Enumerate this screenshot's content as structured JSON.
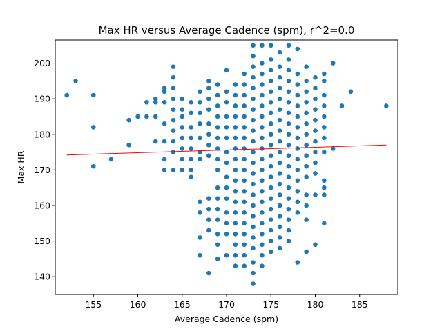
{
  "chart_data": {
    "type": "scatter",
    "title": "Max HR versus Average Cadence (spm), r^2=0.0",
    "xlabel": "Average Cadence (spm)",
    "ylabel": "Max HR",
    "xlim": [
      150.7,
      189.3
    ],
    "ylim": [
      135,
      206.5
    ],
    "xticks": [
      155,
      160,
      165,
      170,
      175,
      180,
      185
    ],
    "yticks": [
      140,
      150,
      160,
      170,
      180,
      190,
      200
    ],
    "grid": false,
    "marker_color": "#1f77b4",
    "fit_color": "#ff0000",
    "fit_line": {
      "x": [
        152,
        188
      ],
      "y": [
        174.2,
        177.0
      ]
    },
    "points": [
      [
        152,
        191
      ],
      [
        153,
        195
      ],
      [
        155,
        191
      ],
      [
        155,
        182
      ],
      [
        155,
        171
      ],
      [
        157,
        173
      ],
      [
        159,
        184
      ],
      [
        159,
        177
      ],
      [
        160,
        185
      ],
      [
        161,
        189
      ],
      [
        161,
        185
      ],
      [
        162,
        190
      ],
      [
        162,
        189
      ],
      [
        162,
        185
      ],
      [
        162,
        178
      ],
      [
        163,
        193
      ],
      [
        163,
        192
      ],
      [
        163,
        189
      ],
      [
        163,
        183
      ],
      [
        163,
        178
      ],
      [
        163,
        173
      ],
      [
        163,
        170
      ],
      [
        164,
        199
      ],
      [
        164,
        196
      ],
      [
        164,
        193
      ],
      [
        164,
        190
      ],
      [
        164,
        187
      ],
      [
        164,
        184
      ],
      [
        164,
        181
      ],
      [
        164,
        178
      ],
      [
        164,
        175
      ],
      [
        164,
        170
      ],
      [
        165,
        190
      ],
      [
        165,
        187
      ],
      [
        165,
        185
      ],
      [
        165,
        182
      ],
      [
        165,
        179
      ],
      [
        165,
        176
      ],
      [
        165,
        173
      ],
      [
        165,
        170
      ],
      [
        166,
        189
      ],
      [
        166,
        186
      ],
      [
        166,
        182
      ],
      [
        166,
        179
      ],
      [
        166,
        176
      ],
      [
        166,
        173
      ],
      [
        166,
        170
      ],
      [
        166,
        168
      ],
      [
        167,
        192
      ],
      [
        167,
        189
      ],
      [
        167,
        186
      ],
      [
        167,
        183
      ],
      [
        167,
        179
      ],
      [
        167,
        175
      ],
      [
        167,
        173
      ],
      [
        167,
        161
      ],
      [
        167,
        158
      ],
      [
        167,
        151
      ],
      [
        167,
        146
      ],
      [
        168,
        195
      ],
      [
        168,
        193
      ],
      [
        168,
        190
      ],
      [
        168,
        187
      ],
      [
        168,
        183
      ],
      [
        168,
        180
      ],
      [
        168,
        177
      ],
      [
        168,
        174
      ],
      [
        168,
        162
      ],
      [
        168,
        159
      ],
      [
        168,
        156
      ],
      [
        168,
        153
      ],
      [
        168,
        141
      ],
      [
        169,
        194
      ],
      [
        169,
        191
      ],
      [
        169,
        188
      ],
      [
        169,
        185
      ],
      [
        169,
        182
      ],
      [
        169,
        179
      ],
      [
        169,
        176
      ],
      [
        169,
        173
      ],
      [
        169,
        170
      ],
      [
        169,
        165
      ],
      [
        169,
        162
      ],
      [
        169,
        159
      ],
      [
        169,
        156
      ],
      [
        169,
        152
      ],
      [
        169,
        149
      ],
      [
        169,
        145
      ],
      [
        170,
        198
      ],
      [
        170,
        192
      ],
      [
        170,
        189
      ],
      [
        170,
        185
      ],
      [
        170,
        182
      ],
      [
        170,
        179
      ],
      [
        170,
        175
      ],
      [
        170,
        172
      ],
      [
        170,
        168
      ],
      [
        170,
        165
      ],
      [
        170,
        162
      ],
      [
        170,
        158
      ],
      [
        170,
        155
      ],
      [
        170,
        152
      ],
      [
        170,
        146
      ],
      [
        171,
        194
      ],
      [
        171,
        191
      ],
      [
        171,
        188
      ],
      [
        171,
        185
      ],
      [
        171,
        182
      ],
      [
        171,
        179
      ],
      [
        171,
        176
      ],
      [
        171,
        173
      ],
      [
        171,
        170
      ],
      [
        171,
        167
      ],
      [
        171,
        164
      ],
      [
        171,
        161
      ],
      [
        171,
        158
      ],
      [
        171,
        155
      ],
      [
        171,
        152
      ],
      [
        171,
        149
      ],
      [
        171,
        146
      ],
      [
        171,
        143
      ],
      [
        172,
        197
      ],
      [
        172,
        194
      ],
      [
        172,
        191
      ],
      [
        172,
        188
      ],
      [
        172,
        185
      ],
      [
        172,
        182
      ],
      [
        172,
        179
      ],
      [
        172,
        176
      ],
      [
        172,
        173
      ],
      [
        172,
        170
      ],
      [
        172,
        167
      ],
      [
        172,
        164
      ],
      [
        172,
        161
      ],
      [
        172,
        158
      ],
      [
        172,
        155
      ],
      [
        172,
        152
      ],
      [
        172,
        149
      ],
      [
        172,
        146
      ],
      [
        172,
        143
      ],
      [
        173,
        205
      ],
      [
        173,
        202
      ],
      [
        173,
        199
      ],
      [
        173,
        196
      ],
      [
        173,
        193
      ],
      [
        173,
        190
      ],
      [
        173,
        187
      ],
      [
        173,
        184
      ],
      [
        173,
        181
      ],
      [
        173,
        178
      ],
      [
        173,
        175
      ],
      [
        173,
        172
      ],
      [
        173,
        169
      ],
      [
        173,
        166
      ],
      [
        173,
        163
      ],
      [
        173,
        160
      ],
      [
        173,
        157
      ],
      [
        173,
        154
      ],
      [
        173,
        151
      ],
      [
        173,
        148
      ],
      [
        173,
        144
      ],
      [
        173,
        141
      ],
      [
        173,
        138
      ],
      [
        174,
        205
      ],
      [
        174,
        200
      ],
      [
        174,
        197
      ],
      [
        174,
        194
      ],
      [
        174,
        191
      ],
      [
        174,
        188
      ],
      [
        174,
        185
      ],
      [
        174,
        182
      ],
      [
        174,
        179
      ],
      [
        174,
        176
      ],
      [
        174,
        173
      ],
      [
        174,
        170
      ],
      [
        174,
        167
      ],
      [
        174,
        164
      ],
      [
        174,
        161
      ],
      [
        174,
        158
      ],
      [
        174,
        155
      ],
      [
        174,
        152
      ],
      [
        174,
        149
      ],
      [
        174,
        146
      ],
      [
        174,
        143
      ],
      [
        175,
        205
      ],
      [
        175,
        201
      ],
      [
        175,
        198
      ],
      [
        175,
        195
      ],
      [
        175,
        192
      ],
      [
        175,
        189
      ],
      [
        175,
        186
      ],
      [
        175,
        183
      ],
      [
        175,
        180
      ],
      [
        175,
        177
      ],
      [
        175,
        174
      ],
      [
        175,
        171
      ],
      [
        175,
        168
      ],
      [
        175,
        165
      ],
      [
        175,
        162
      ],
      [
        175,
        159
      ],
      [
        175,
        156
      ],
      [
        175,
        153
      ],
      [
        175,
        150
      ],
      [
        175,
        147
      ],
      [
        176,
        203
      ],
      [
        176,
        199
      ],
      [
        176,
        196
      ],
      [
        176,
        193
      ],
      [
        176,
        190
      ],
      [
        176,
        187
      ],
      [
        176,
        184
      ],
      [
        176,
        181
      ],
      [
        176,
        178
      ],
      [
        176,
        175
      ],
      [
        176,
        172
      ],
      [
        176,
        169
      ],
      [
        176,
        166
      ],
      [
        176,
        163
      ],
      [
        176,
        160
      ],
      [
        176,
        157
      ],
      [
        176,
        154
      ],
      [
        176,
        151
      ],
      [
        176,
        148
      ],
      [
        177,
        205
      ],
      [
        177,
        201
      ],
      [
        177,
        198
      ],
      [
        177,
        195
      ],
      [
        177,
        192
      ],
      [
        177,
        189
      ],
      [
        177,
        186
      ],
      [
        177,
        183
      ],
      [
        177,
        180
      ],
      [
        177,
        177
      ],
      [
        177,
        174
      ],
      [
        177,
        171
      ],
      [
        177,
        168
      ],
      [
        177,
        165
      ],
      [
        177,
        162
      ],
      [
        177,
        159
      ],
      [
        177,
        156
      ],
      [
        177,
        153
      ],
      [
        177,
        150
      ],
      [
        178,
        204
      ],
      [
        178,
        197
      ],
      [
        178,
        194
      ],
      [
        178,
        191
      ],
      [
        178,
        188
      ],
      [
        178,
        185
      ],
      [
        178,
        182
      ],
      [
        178,
        179
      ],
      [
        178,
        176
      ],
      [
        178,
        173
      ],
      [
        178,
        170
      ],
      [
        178,
        167
      ],
      [
        178,
        164
      ],
      [
        178,
        161
      ],
      [
        178,
        158
      ],
      [
        178,
        144
      ],
      [
        179,
        199
      ],
      [
        179,
        195
      ],
      [
        179,
        192
      ],
      [
        179,
        189
      ],
      [
        179,
        186
      ],
      [
        179,
        183
      ],
      [
        179,
        180
      ],
      [
        179,
        177
      ],
      [
        179,
        174
      ],
      [
        179,
        171
      ],
      [
        179,
        168
      ],
      [
        179,
        163
      ],
      [
        179,
        160
      ],
      [
        179,
        156
      ],
      [
        179,
        147
      ],
      [
        180,
        196
      ],
      [
        180,
        193
      ],
      [
        180,
        190
      ],
      [
        180,
        187
      ],
      [
        180,
        184
      ],
      [
        180,
        181
      ],
      [
        180,
        178
      ],
      [
        180,
        175
      ],
      [
        180,
        172
      ],
      [
        180,
        169
      ],
      [
        180,
        163
      ],
      [
        180,
        149
      ],
      [
        181,
        197
      ],
      [
        181,
        195
      ],
      [
        181,
        191
      ],
      [
        181,
        188
      ],
      [
        181,
        185
      ],
      [
        181,
        182
      ],
      [
        181,
        179
      ],
      [
        181,
        175
      ],
      [
        181,
        167
      ],
      [
        181,
        165
      ],
      [
        181,
        163
      ],
      [
        181,
        155
      ],
      [
        182,
        200
      ],
      [
        182,
        176
      ],
      [
        183,
        188
      ],
      [
        184,
        192
      ],
      [
        188,
        188
      ]
    ]
  }
}
